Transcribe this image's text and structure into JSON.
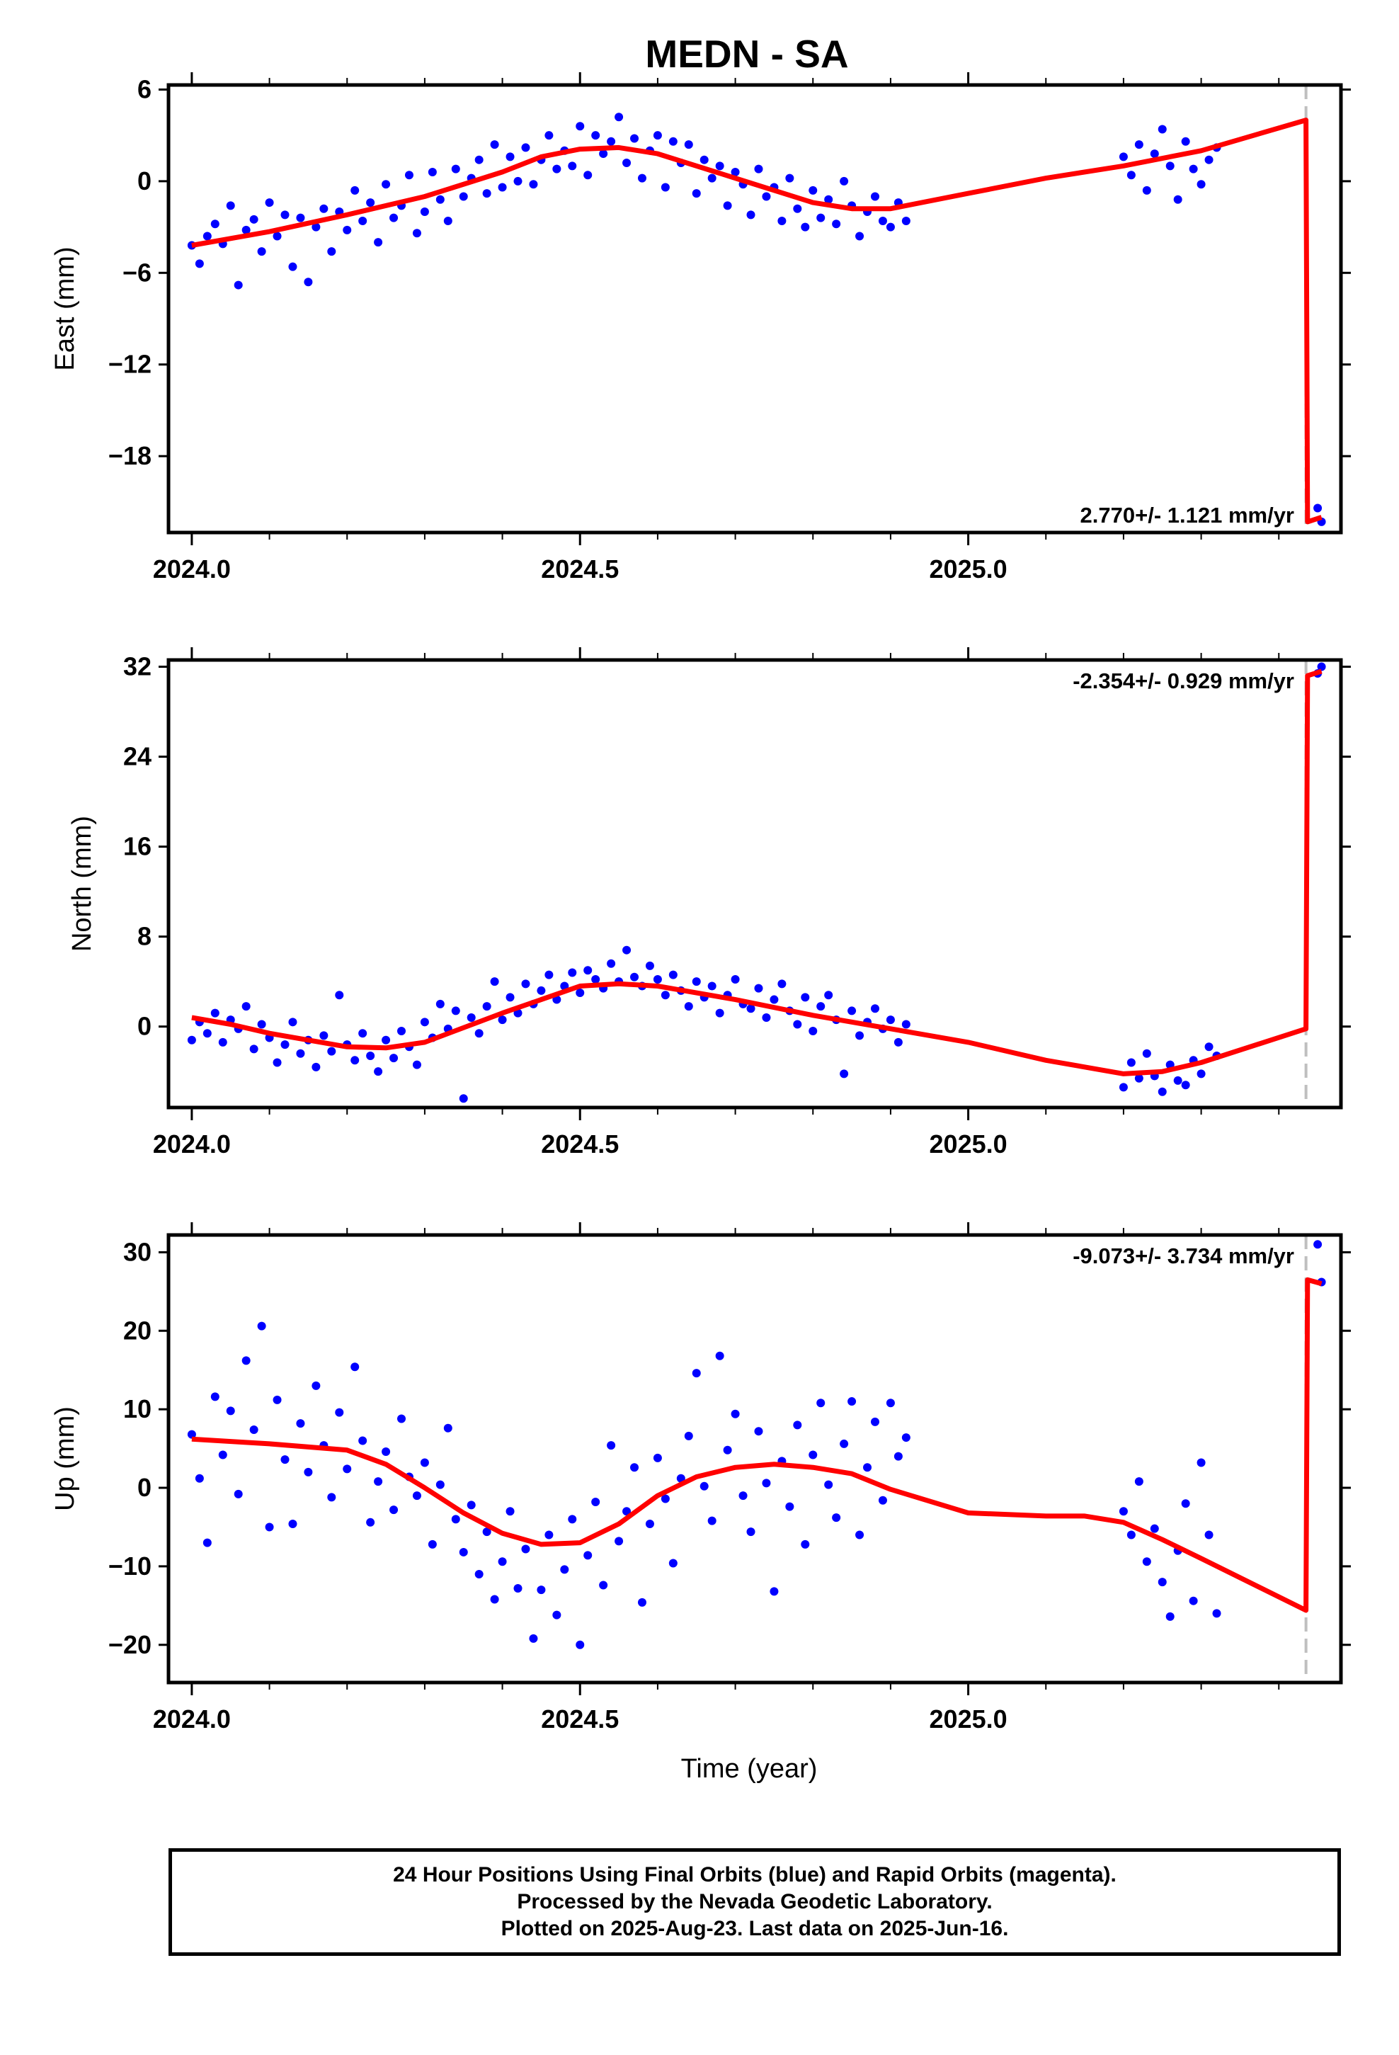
{
  "title": "MEDN - SA",
  "footer": [
    "24 Hour Positions Using Final Orbits (blue) and Rapid Orbits (magenta).",
    "Processed by the Nevada Geodetic Laboratory.",
    "Plotted on 2025-Aug-23. Last data on 2025-Jun-16."
  ],
  "colors": {
    "points": "#0000ff",
    "model": "#ff0000",
    "offset_line": "#bfbfbf"
  },
  "chart_data": [
    {
      "type": "scatter",
      "ylabel": "East (mm)",
      "xlabel": "",
      "xlim": [
        2023.97,
        2025.48
      ],
      "ylim": [
        -23,
        6.3
      ],
      "xticks": [
        2024.0,
        2024.5,
        2025.0
      ],
      "xtick_labels": [
        "2024.0",
        "2024.5",
        "2025.0"
      ],
      "yticks": [
        -18,
        -12,
        -6,
        0,
        6
      ],
      "ytick_labels": [
        "−18",
        "−12",
        "−6",
        "0",
        "6"
      ],
      "rate_label": "2.770+/- 1.121 mm/yr",
      "rate_position": "bottom-right",
      "offset_epoch": 2025.435,
      "series": [
        {
          "kind": "points",
          "x": [
            2024.0,
            2024.01,
            2024.02,
            2024.03,
            2024.04,
            2024.05,
            2024.06,
            2024.07,
            2024.08,
            2024.09,
            2024.1,
            2024.11,
            2024.12,
            2024.13,
            2024.14,
            2024.15,
            2024.16,
            2024.17,
            2024.18,
            2024.19,
            2024.2,
            2024.21,
            2024.22,
            2024.23,
            2024.24,
            2024.25,
            2024.26,
            2024.27,
            2024.28,
            2024.29,
            2024.3,
            2024.31,
            2024.32,
            2024.33,
            2024.34,
            2024.35,
            2024.36,
            2024.37,
            2024.38,
            2024.39,
            2024.4,
            2024.41,
            2024.42,
            2024.43,
            2024.44,
            2024.45,
            2024.46,
            2024.47,
            2024.48,
            2024.49,
            2024.5,
            2024.51,
            2024.52,
            2024.53,
            2024.54,
            2024.55,
            2024.56,
            2024.57,
            2024.58,
            2024.59,
            2024.6,
            2024.61,
            2024.62,
            2024.63,
            2024.64,
            2024.65,
            2024.66,
            2024.67,
            2024.68,
            2024.69,
            2024.7,
            2024.71,
            2024.72,
            2024.73,
            2024.74,
            2024.75,
            2024.76,
            2024.77,
            2024.78,
            2024.79,
            2024.8,
            2024.81,
            2024.82,
            2024.83,
            2024.84,
            2024.85,
            2024.86,
            2024.87,
            2024.88,
            2024.89,
            2024.9,
            2024.91,
            2024.92,
            2025.2,
            2025.21,
            2025.22,
            2025.23,
            2025.24,
            2025.25,
            2025.26,
            2025.27,
            2025.28,
            2025.29,
            2025.3,
            2025.31,
            2025.32,
            2025.45,
            2025.455
          ],
          "y": [
            -4.2,
            -5.4,
            -3.6,
            -2.8,
            -4.1,
            -1.6,
            -6.8,
            -3.2,
            -2.5,
            -4.6,
            -1.4,
            -3.6,
            -2.2,
            -5.6,
            -2.4,
            -6.6,
            -3.0,
            -1.8,
            -4.6,
            -2.0,
            -3.2,
            -0.6,
            -2.6,
            -1.4,
            -4.0,
            -0.2,
            -2.4,
            -1.6,
            0.4,
            -3.4,
            -2.0,
            0.6,
            -1.2,
            -2.6,
            0.8,
            -1.0,
            0.2,
            1.4,
            -0.8,
            2.4,
            -0.4,
            1.6,
            0.0,
            2.2,
            -0.2,
            1.4,
            3.0,
            0.8,
            2.0,
            1.0,
            3.6,
            0.4,
            3.0,
            1.8,
            2.6,
            4.2,
            1.2,
            2.8,
            0.2,
            2.0,
            3.0,
            -0.4,
            2.6,
            1.2,
            2.4,
            -0.8,
            1.4,
            0.2,
            1.0,
            -1.6,
            0.6,
            -0.2,
            -2.2,
            0.8,
            -1.0,
            -0.4,
            -2.6,
            0.2,
            -1.8,
            -3.0,
            -0.6,
            -2.4,
            -1.2,
            -2.8,
            0.0,
            -1.6,
            -3.6,
            -2.0,
            -1.0,
            -2.6,
            -3.0,
            -1.4,
            -2.6,
            1.6,
            0.4,
            2.4,
            -0.6,
            1.8,
            3.4,
            1.0,
            -1.2,
            2.6,
            0.8,
            -0.2,
            1.4,
            2.2,
            -21.4,
            -22.3
          ]
        },
        {
          "kind": "line",
          "x": [
            2024.0,
            2024.1,
            2024.2,
            2024.3,
            2024.4,
            2024.45,
            2024.5,
            2024.55,
            2024.6,
            2024.7,
            2024.8,
            2024.85,
            2024.9,
            2025.0,
            2025.1,
            2025.2,
            2025.3,
            2025.435,
            2025.437,
            2025.455
          ],
          "y": [
            -4.2,
            -3.3,
            -2.2,
            -1.0,
            0.6,
            1.6,
            2.1,
            2.2,
            1.8,
            0.2,
            -1.4,
            -1.8,
            -1.8,
            -0.8,
            0.2,
            1.0,
            2.0,
            4.0,
            -22.3,
            -22.0
          ]
        }
      ]
    },
    {
      "type": "scatter",
      "ylabel": "North (mm)",
      "xlabel": "",
      "xlim": [
        2023.97,
        2025.48
      ],
      "ylim": [
        -7.2,
        32.6
      ],
      "xticks": [
        2024.0,
        2024.5,
        2025.0
      ],
      "xtick_labels": [
        "2024.0",
        "2024.5",
        "2025.0"
      ],
      "yticks": [
        0,
        8,
        16,
        24,
        32
      ],
      "ytick_labels": [
        "0",
        "8",
        "16",
        "24",
        "32"
      ],
      "rate_label": "-2.354+/- 0.929 mm/yr",
      "rate_position": "top-right",
      "offset_epoch": 2025.435,
      "series": [
        {
          "kind": "points",
          "x": [
            2024.0,
            2024.01,
            2024.02,
            2024.03,
            2024.04,
            2024.05,
            2024.06,
            2024.07,
            2024.08,
            2024.09,
            2024.1,
            2024.11,
            2024.12,
            2024.13,
            2024.14,
            2024.15,
            2024.16,
            2024.17,
            2024.18,
            2024.19,
            2024.2,
            2024.21,
            2024.22,
            2024.23,
            2024.24,
            2024.25,
            2024.26,
            2024.27,
            2024.28,
            2024.29,
            2024.3,
            2024.31,
            2024.32,
            2024.33,
            2024.34,
            2024.35,
            2024.36,
            2024.37,
            2024.38,
            2024.39,
            2024.4,
            2024.41,
            2024.42,
            2024.43,
            2024.44,
            2024.45,
            2024.46,
            2024.47,
            2024.48,
            2024.49,
            2024.5,
            2024.51,
            2024.52,
            2024.53,
            2024.54,
            2024.55,
            2024.56,
            2024.57,
            2024.58,
            2024.59,
            2024.6,
            2024.61,
            2024.62,
            2024.63,
            2024.64,
            2024.65,
            2024.66,
            2024.67,
            2024.68,
            2024.69,
            2024.7,
            2024.71,
            2024.72,
            2024.73,
            2024.74,
            2024.75,
            2024.76,
            2024.77,
            2024.78,
            2024.79,
            2024.8,
            2024.81,
            2024.82,
            2024.83,
            2024.84,
            2024.85,
            2024.86,
            2024.87,
            2024.88,
            2024.89,
            2024.9,
            2024.91,
            2024.92,
            2025.2,
            2025.21,
            2025.22,
            2025.23,
            2025.24,
            2025.25,
            2025.26,
            2025.27,
            2025.28,
            2025.29,
            2025.3,
            2025.31,
            2025.32,
            2025.45,
            2025.455
          ],
          "y": [
            -1.2,
            0.4,
            -0.6,
            1.2,
            -1.4,
            0.6,
            -0.2,
            1.8,
            -2.0,
            0.2,
            -1.0,
            -3.2,
            -1.6,
            0.4,
            -2.4,
            -1.2,
            -3.6,
            -0.8,
            -2.2,
            2.8,
            -1.6,
            -3.0,
            -0.6,
            -2.6,
            -4.0,
            -1.2,
            -2.8,
            -0.4,
            -1.8,
            -3.4,
            0.4,
            -1.0,
            2.0,
            -0.2,
            1.4,
            -6.4,
            0.8,
            -0.6,
            1.8,
            4.0,
            0.6,
            2.6,
            1.2,
            3.8,
            2.0,
            3.2,
            4.6,
            2.4,
            3.6,
            4.8,
            3.0,
            5.0,
            4.2,
            3.4,
            5.6,
            4.0,
            6.8,
            4.4,
            3.6,
            5.4,
            4.2,
            2.8,
            4.6,
            3.2,
            1.8,
            4.0,
            2.6,
            3.6,
            1.2,
            2.8,
            4.2,
            2.0,
            1.6,
            3.4,
            0.8,
            2.4,
            3.8,
            1.4,
            0.2,
            2.6,
            -0.4,
            1.8,
            2.8,
            0.6,
            -4.2,
            1.4,
            -0.8,
            0.4,
            1.6,
            -0.2,
            0.6,
            -1.4,
            0.2,
            -5.4,
            -3.2,
            -4.6,
            -2.4,
            -4.4,
            -5.8,
            -3.4,
            -4.8,
            -5.2,
            -3.0,
            -4.2,
            -1.8,
            -2.6,
            31.4,
            32.0
          ]
        },
        {
          "kind": "line",
          "x": [
            2024.0,
            2024.05,
            2024.1,
            2024.2,
            2024.25,
            2024.3,
            2024.4,
            2024.5,
            2024.55,
            2024.6,
            2024.7,
            2024.8,
            2024.9,
            2025.0,
            2025.1,
            2025.2,
            2025.25,
            2025.3,
            2025.435,
            2025.437,
            2025.455
          ],
          "y": [
            0.8,
            0.2,
            -0.6,
            -1.8,
            -1.9,
            -1.4,
            1.2,
            3.6,
            3.8,
            3.6,
            2.4,
            1.0,
            -0.2,
            -1.4,
            -3.0,
            -4.2,
            -4.0,
            -3.2,
            -0.2,
            31.2,
            31.6
          ]
        }
      ]
    },
    {
      "type": "scatter",
      "ylabel": "Up (mm)",
      "xlabel": "Time (year)",
      "xlim": [
        2023.97,
        2025.48
      ],
      "ylim": [
        -24.8,
        32.2
      ],
      "xticks": [
        2024.0,
        2024.5,
        2025.0
      ],
      "xtick_labels": [
        "2024.0",
        "2024.5",
        "2025.0"
      ],
      "yticks": [
        -20,
        -10,
        0,
        10,
        20,
        30
      ],
      "ytick_labels": [
        "−20",
        "−10",
        "0",
        "10",
        "20",
        "30"
      ],
      "rate_label": "-9.073+/- 3.734 mm/yr",
      "rate_position": "top-right",
      "offset_epoch": 2025.435,
      "series": [
        {
          "kind": "points",
          "x": [
            2024.0,
            2024.01,
            2024.02,
            2024.03,
            2024.04,
            2024.05,
            2024.06,
            2024.07,
            2024.08,
            2024.09,
            2024.1,
            2024.11,
            2024.12,
            2024.13,
            2024.14,
            2024.15,
            2024.16,
            2024.17,
            2024.18,
            2024.19,
            2024.2,
            2024.21,
            2024.22,
            2024.23,
            2024.24,
            2024.25,
            2024.26,
            2024.27,
            2024.28,
            2024.29,
            2024.3,
            2024.31,
            2024.32,
            2024.33,
            2024.34,
            2024.35,
            2024.36,
            2024.37,
            2024.38,
            2024.39,
            2024.4,
            2024.41,
            2024.42,
            2024.43,
            2024.44,
            2024.45,
            2024.46,
            2024.47,
            2024.48,
            2024.49,
            2024.5,
            2024.51,
            2024.52,
            2024.53,
            2024.54,
            2024.55,
            2024.56,
            2024.57,
            2024.58,
            2024.59,
            2024.6,
            2024.61,
            2024.62,
            2024.63,
            2024.64,
            2024.65,
            2024.66,
            2024.67,
            2024.68,
            2024.69,
            2024.7,
            2024.71,
            2024.72,
            2024.73,
            2024.74,
            2024.75,
            2024.76,
            2024.77,
            2024.78,
            2024.79,
            2024.8,
            2024.81,
            2024.82,
            2024.83,
            2024.84,
            2024.85,
            2024.86,
            2024.87,
            2024.88,
            2024.89,
            2024.9,
            2024.91,
            2024.92,
            2025.2,
            2025.21,
            2025.22,
            2025.23,
            2025.24,
            2025.25,
            2025.26,
            2025.27,
            2025.28,
            2025.29,
            2025.3,
            2025.31,
            2025.32,
            2025.45,
            2025.455
          ],
          "y": [
            6.8,
            1.2,
            -7.0,
            11.6,
            4.2,
            9.8,
            -0.8,
            16.2,
            7.4,
            20.6,
            -5.0,
            11.2,
            3.6,
            -4.6,
            8.2,
            2.0,
            13.0,
            5.4,
            -1.2,
            9.6,
            2.4,
            15.4,
            6.0,
            -4.4,
            0.8,
            4.6,
            -2.8,
            8.8,
            1.4,
            -1.0,
            3.2,
            -7.2,
            0.4,
            7.6,
            -4.0,
            -8.2,
            -2.2,
            -11.0,
            -5.6,
            -14.2,
            -9.4,
            -3.0,
            -12.8,
            -7.8,
            -19.2,
            -13.0,
            -6.0,
            -16.2,
            -10.4,
            -4.0,
            -20.0,
            -8.6,
            -1.8,
            -12.4,
            5.4,
            -6.8,
            -3.0,
            2.6,
            -14.6,
            -4.6,
            3.8,
            -1.4,
            -9.6,
            1.2,
            6.6,
            14.6,
            0.2,
            -4.2,
            16.8,
            4.8,
            9.4,
            -1.0,
            -5.6,
            7.2,
            0.6,
            -13.2,
            3.4,
            -2.4,
            8.0,
            -7.2,
            4.2,
            10.8,
            0.4,
            -3.8,
            5.6,
            11.0,
            -6.0,
            2.6,
            8.4,
            -1.6,
            10.8,
            4.0,
            6.4,
            -3.0,
            -6.0,
            0.8,
            -9.4,
            -5.2,
            -12.0,
            -16.4,
            -8.0,
            -2.0,
            -14.4,
            3.2,
            -6.0,
            -16.0,
            31.0,
            26.2
          ]
        },
        {
          "kind": "line",
          "x": [
            2024.0,
            2024.1,
            2024.2,
            2024.25,
            2024.3,
            2024.35,
            2024.4,
            2024.45,
            2024.5,
            2024.55,
            2024.6,
            2024.65,
            2024.7,
            2024.75,
            2024.8,
            2024.85,
            2024.9,
            2025.0,
            2025.1,
            2025.15,
            2025.2,
            2025.25,
            2025.3,
            2025.435,
            2025.437,
            2025.455
          ],
          "y": [
            6.2,
            5.6,
            4.8,
            3.0,
            0.0,
            -3.2,
            -5.8,
            -7.2,
            -7.0,
            -4.6,
            -1.0,
            1.4,
            2.6,
            3.0,
            2.6,
            1.8,
            -0.2,
            -3.2,
            -3.6,
            -3.6,
            -4.4,
            -6.6,
            -9.0,
            -15.6,
            26.5,
            26.0
          ]
        }
      ]
    }
  ]
}
